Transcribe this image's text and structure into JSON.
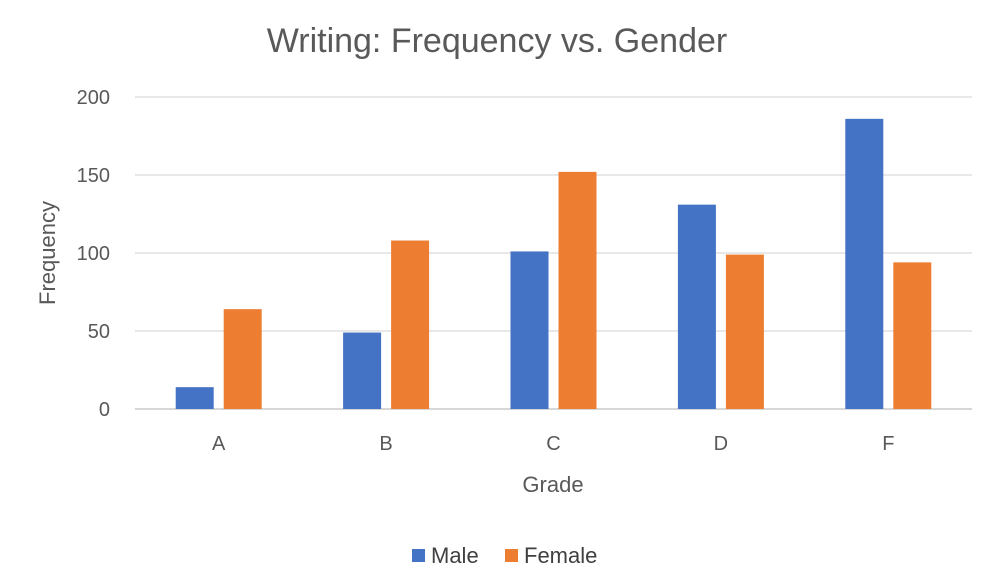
{
  "chart_data": {
    "type": "bar",
    "title": "Writing: Frequency vs. Gender",
    "xlabel": "Grade",
    "ylabel": "Frequency",
    "categories": [
      "A",
      "B",
      "C",
      "D",
      "F"
    ],
    "series": [
      {
        "name": "Male",
        "color": "#4472C4",
        "values": [
          14,
          49,
          101,
          131,
          186
        ]
      },
      {
        "name": "Female",
        "color": "#ED7D31",
        "values": [
          64,
          108,
          152,
          99,
          94
        ]
      }
    ],
    "ylim": [
      0,
      200
    ],
    "yticks": [
      0,
      50,
      100,
      150,
      200
    ],
    "grid": true,
    "legend": "bottom"
  }
}
